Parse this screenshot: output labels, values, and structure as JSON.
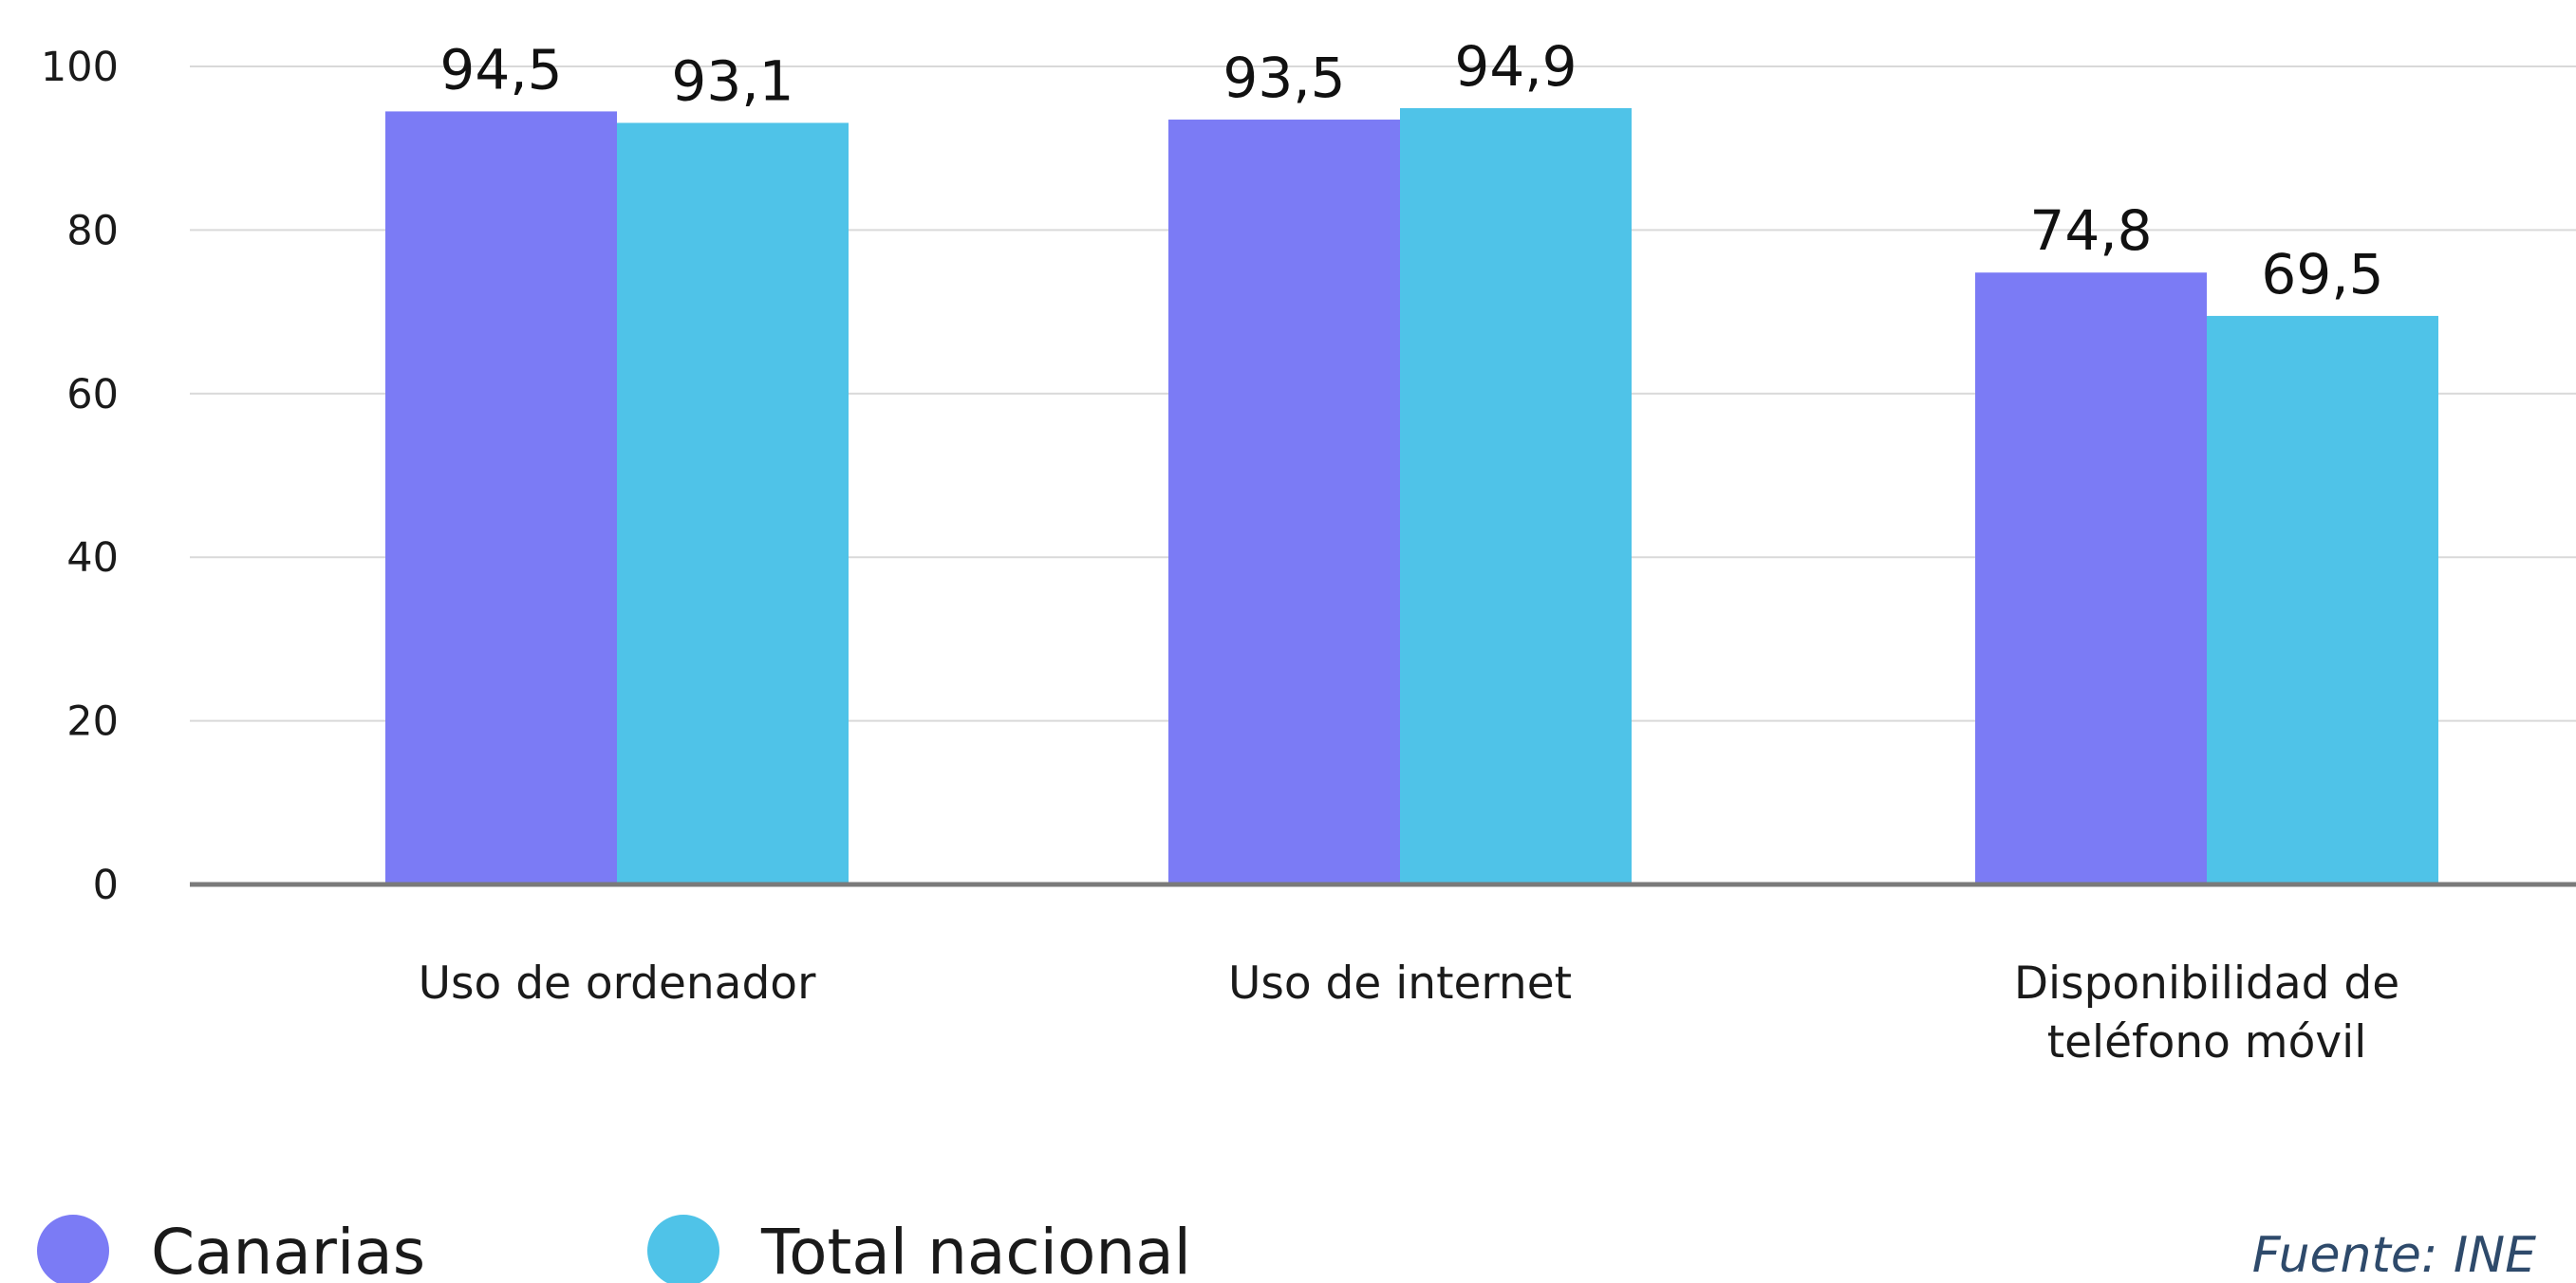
{
  "chart_data": {
    "type": "bar",
    "categories": [
      [
        "Uso de ordenador"
      ],
      [
        "Uso de internet"
      ],
      [
        "Disponibilidad de",
        "teléfono móvil"
      ]
    ],
    "series": [
      {
        "name": "Canarias",
        "values": [
          94.5,
          93.5,
          74.8
        ],
        "labels": [
          "94,5",
          "93,5",
          "74,8"
        ],
        "color": "#7b7bf5"
      },
      {
        "name": "Total nacional",
        "values": [
          93.1,
          94.9,
          69.5
        ],
        "labels": [
          "93,1",
          "94,9",
          "69,5"
        ],
        "color": "#4fc3e8"
      }
    ],
    "ylim": [
      0,
      100
    ],
    "yticks": [
      0,
      20,
      40,
      60,
      80,
      100
    ],
    "grid": true,
    "legend_position": "bottom-left",
    "source": "Fuente: INE"
  }
}
